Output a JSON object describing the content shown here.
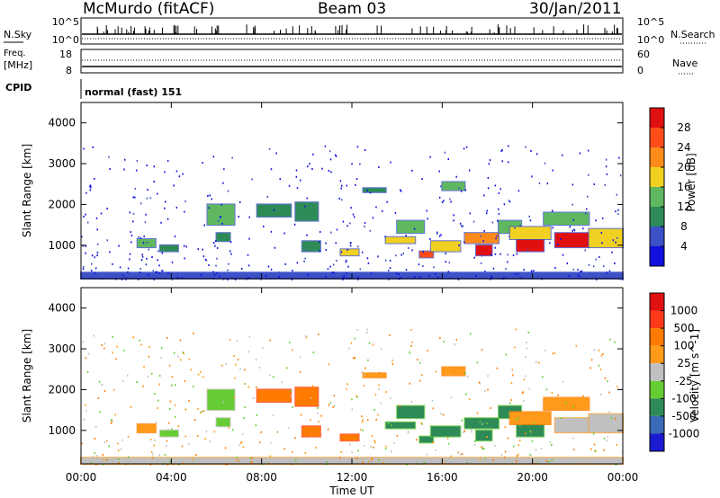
{
  "header": {
    "station": "McMurdo (fitACF)",
    "beam": "Beam 03",
    "date": "30/Jan/2011"
  },
  "noise_panel": {
    "left_label": "N.Sky",
    "left_ticks": [
      "10^5",
      "10^0"
    ],
    "right_label": "N.Search",
    "right_ticks": [
      "10^5",
      "10^0"
    ]
  },
  "freq_panel": {
    "left_label_line1": "Freq.",
    "left_label_line2": "[MHz]",
    "left_ticks": [
      "18",
      "8"
    ],
    "right_label": "Nave",
    "right_ticks": [
      "60",
      "0"
    ]
  },
  "cpid_panel": {
    "label": "CPID",
    "text": "normal (fast) 151"
  },
  "chart_data": [
    {
      "type": "heatmap",
      "name": "power",
      "ylabel": "Slant Range [km]",
      "yticks": [
        "4000",
        "3000",
        "2000",
        "1000"
      ],
      "ylim": [
        180,
        4500
      ],
      "xlim": [
        0,
        24
      ],
      "colorbar_label": "Power [dB]",
      "colorbar_ticks": [
        "28",
        "24",
        "20",
        "16",
        "12",
        "8",
        "4"
      ],
      "colorbar_colors": [
        "#1010e0",
        "#3c50c8",
        "#2e8b57",
        "#5fb85f",
        "#f0d020",
        "#ff8c1a",
        "#ff4d1a",
        "#e01010"
      ],
      "blobs": [
        {
          "t0": 2.5,
          "t1": 3.3,
          "r0": 950,
          "r1": 1150,
          "level": 3
        },
        {
          "t0": 3.5,
          "t1": 4.3,
          "r0": 850,
          "r1": 1000,
          "level": 2
        },
        {
          "t0": 5.6,
          "t1": 6.8,
          "r0": 1500,
          "r1": 2000,
          "level": 3
        },
        {
          "t0": 6.0,
          "t1": 6.6,
          "r0": 1100,
          "r1": 1300,
          "level": 2
        },
        {
          "t0": 7.8,
          "t1": 9.3,
          "r0": 1700,
          "r1": 2000,
          "level": 2
        },
        {
          "t0": 9.5,
          "t1": 10.5,
          "r0": 1600,
          "r1": 2050,
          "level": 2
        },
        {
          "t0": 9.8,
          "t1": 10.6,
          "r0": 850,
          "r1": 1100,
          "level": 2
        },
        {
          "t0": 11.5,
          "t1": 12.3,
          "r0": 750,
          "r1": 900,
          "level": 4
        },
        {
          "t0": 12.5,
          "t1": 13.5,
          "r0": 2300,
          "r1": 2400,
          "level": 2
        },
        {
          "t0": 13.5,
          "t1": 14.8,
          "r0": 1050,
          "r1": 1200,
          "level": 4
        },
        {
          "t0": 14.0,
          "t1": 15.2,
          "r0": 1300,
          "r1": 1600,
          "level": 3
        },
        {
          "t0": 15.0,
          "t1": 15.6,
          "r0": 700,
          "r1": 850,
          "level": 6
        },
        {
          "t0": 15.5,
          "t1": 16.8,
          "r0": 850,
          "r1": 1100,
          "level": 4
        },
        {
          "t0": 16.0,
          "t1": 17.0,
          "r0": 2350,
          "r1": 2550,
          "level": 3
        },
        {
          "t0": 17.0,
          "t1": 18.5,
          "r0": 1050,
          "r1": 1300,
          "level": 5
        },
        {
          "t0": 17.5,
          "t1": 18.2,
          "r0": 750,
          "r1": 1000,
          "level": 7
        },
        {
          "t0": 18.5,
          "t1": 19.5,
          "r0": 1300,
          "r1": 1600,
          "level": 3
        },
        {
          "t0": 19.3,
          "t1": 20.5,
          "r0": 850,
          "r1": 1150,
          "level": 7
        },
        {
          "t0": 19.0,
          "t1": 20.8,
          "r0": 1150,
          "r1": 1450,
          "level": 4
        },
        {
          "t0": 20.5,
          "t1": 22.5,
          "r0": 1500,
          "r1": 1800,
          "level": 3
        },
        {
          "t0": 21.0,
          "t1": 22.5,
          "r0": 950,
          "r1": 1300,
          "level": 7
        },
        {
          "t0": 22.5,
          "t1": 24.0,
          "r0": 950,
          "r1": 1400,
          "level": 4
        },
        {
          "t0": 0.0,
          "t1": 24.0,
          "r0": 180,
          "r1": 330,
          "level": 1
        }
      ]
    },
    {
      "type": "heatmap",
      "name": "velocity",
      "ylabel": "Slant Range [km]",
      "yticks": [
        "4000",
        "3000",
        "2000",
        "1000"
      ],
      "ylim": [
        180,
        4500
      ],
      "xlim": [
        0,
        24
      ],
      "colorbar_label": "Velocity [m s^-1]",
      "colorbar_ticks": [
        "1000",
        "500",
        "100",
        "25",
        "-25",
        "-100",
        "-500",
        "-1000"
      ],
      "colorbar_colors": [
        "#1a1ad0",
        "#3a6ab8",
        "#2e8b57",
        "#66cc33",
        "#c0c0c0",
        "#ff9a1a",
        "#ff7a00",
        "#ff3a1a",
        "#e01010"
      ],
      "blobs": [
        {
          "t0": 2.5,
          "t1": 3.3,
          "r0": 950,
          "r1": 1150,
          "level": 5
        },
        {
          "t0": 3.5,
          "t1": 4.3,
          "r0": 850,
          "r1": 1000,
          "level": 3
        },
        {
          "t0": 5.6,
          "t1": 6.8,
          "r0": 1500,
          "r1": 2000,
          "level": 3
        },
        {
          "t0": 6.0,
          "t1": 6.6,
          "r0": 1100,
          "r1": 1300,
          "level": 3
        },
        {
          "t0": 7.8,
          "t1": 9.3,
          "r0": 1700,
          "r1": 2000,
          "level": 6
        },
        {
          "t0": 9.5,
          "t1": 10.5,
          "r0": 1600,
          "r1": 2050,
          "level": 6
        },
        {
          "t0": 9.8,
          "t1": 10.6,
          "r0": 850,
          "r1": 1100,
          "level": 6
        },
        {
          "t0": 11.5,
          "t1": 12.3,
          "r0": 750,
          "r1": 900,
          "level": 6
        },
        {
          "t0": 12.5,
          "t1": 13.5,
          "r0": 2300,
          "r1": 2400,
          "level": 5
        },
        {
          "t0": 13.5,
          "t1": 14.8,
          "r0": 1050,
          "r1": 1200,
          "level": 2
        },
        {
          "t0": 14.0,
          "t1": 15.2,
          "r0": 1300,
          "r1": 1600,
          "level": 2
        },
        {
          "t0": 15.0,
          "t1": 15.6,
          "r0": 700,
          "r1": 850,
          "level": 2
        },
        {
          "t0": 15.5,
          "t1": 16.8,
          "r0": 850,
          "r1": 1100,
          "level": 2
        },
        {
          "t0": 16.0,
          "t1": 17.0,
          "r0": 2350,
          "r1": 2550,
          "level": 5
        },
        {
          "t0": 17.0,
          "t1": 18.5,
          "r0": 1050,
          "r1": 1300,
          "level": 2
        },
        {
          "t0": 17.5,
          "t1": 18.2,
          "r0": 750,
          "r1": 1000,
          "level": 2
        },
        {
          "t0": 18.5,
          "t1": 19.5,
          "r0": 1300,
          "r1": 1600,
          "level": 2
        },
        {
          "t0": 19.3,
          "t1": 20.5,
          "r0": 850,
          "r1": 1150,
          "level": 2
        },
        {
          "t0": 19.0,
          "t1": 20.8,
          "r0": 1150,
          "r1": 1450,
          "level": 5
        },
        {
          "t0": 20.5,
          "t1": 22.5,
          "r0": 1500,
          "r1": 1800,
          "level": 5
        },
        {
          "t0": 21.0,
          "t1": 22.5,
          "r0": 950,
          "r1": 1300,
          "level": 4
        },
        {
          "t0": 22.5,
          "t1": 24.0,
          "r0": 950,
          "r1": 1400,
          "level": 4
        },
        {
          "t0": 0.0,
          "t1": 24.0,
          "r0": 180,
          "r1": 330,
          "level": 4
        }
      ]
    }
  ],
  "x_axis": {
    "ticks": [
      "00:00",
      "04:00",
      "08:00",
      "12:00",
      "16:00",
      "20:00",
      "00:00"
    ],
    "label": "Time UT"
  }
}
